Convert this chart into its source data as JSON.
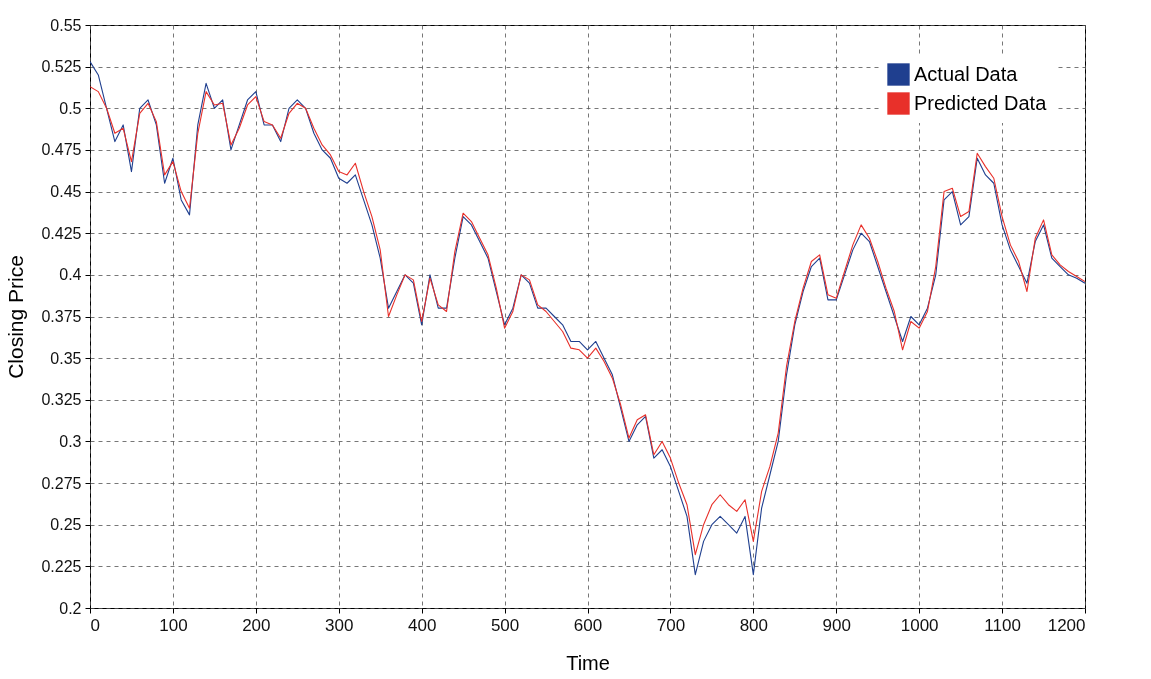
{
  "chart_data": {
    "type": "line",
    "xlabel": "Time",
    "ylabel": "Closing Price",
    "xlim": [
      0,
      1200
    ],
    "xticks": [
      0,
      100,
      200,
      300,
      400,
      500,
      600,
      700,
      800,
      900,
      1000,
      1100,
      1200
    ],
    "ylim": [
      0.2,
      0.55
    ],
    "yticks": [
      0.2,
      0.225,
      0.25,
      0.275,
      0.3,
      0.325,
      0.35,
      0.375,
      0.4,
      0.425,
      0.45,
      0.475,
      0.5,
      0.525,
      0.55
    ],
    "grid": true,
    "legend": "top right",
    "line_style": "solid",
    "x": [
      0,
      10,
      20,
      30,
      40,
      50,
      60,
      70,
      80,
      90,
      100,
      110,
      120,
      130,
      140,
      150,
      160,
      170,
      180,
      190,
      200,
      210,
      220,
      230,
      240,
      250,
      260,
      270,
      280,
      290,
      300,
      310,
      320,
      330,
      340,
      350,
      360,
      370,
      380,
      390,
      400,
      410,
      420,
      430,
      440,
      450,
      460,
      470,
      480,
      490,
      500,
      510,
      520,
      530,
      540,
      550,
      560,
      570,
      580,
      590,
      600,
      610,
      620,
      630,
      640,
      650,
      660,
      670,
      680,
      690,
      700,
      710,
      720,
      730,
      740,
      750,
      760,
      770,
      780,
      790,
      800,
      810,
      820,
      830,
      840,
      850,
      860,
      870,
      880,
      890,
      900,
      910,
      920,
      930,
      940,
      950,
      960,
      970,
      980,
      990,
      1000,
      1010,
      1020,
      1030,
      1040,
      1050,
      1060,
      1070,
      1080,
      1090,
      1100,
      1110,
      1120,
      1130,
      1140,
      1150,
      1160,
      1170,
      1180,
      1190,
      1200
    ],
    "series": [
      {
        "name": "Actual Data",
        "color": "#1f3f8f",
        "values": [
          0.528,
          0.52,
          0.5,
          0.48,
          0.49,
          0.462,
          0.5,
          0.505,
          0.49,
          0.455,
          0.47,
          0.445,
          0.436,
          0.49,
          0.515,
          0.5,
          0.505,
          0.475,
          0.49,
          0.505,
          0.51,
          0.49,
          0.49,
          0.48,
          0.5,
          0.505,
          0.5,
          0.485,
          0.475,
          0.47,
          0.458,
          0.455,
          0.46,
          0.445,
          0.43,
          0.41,
          0.38,
          0.39,
          0.4,
          0.395,
          0.37,
          0.4,
          0.38,
          0.38,
          0.41,
          0.435,
          0.43,
          0.42,
          0.41,
          0.39,
          0.37,
          0.38,
          0.4,
          0.395,
          0.38,
          0.38,
          0.375,
          0.37,
          0.36,
          0.36,
          0.355,
          0.36,
          0.35,
          0.34,
          0.32,
          0.3,
          0.31,
          0.315,
          0.29,
          0.295,
          0.285,
          0.27,
          0.255,
          0.22,
          0.24,
          0.25,
          0.255,
          0.25,
          0.245,
          0.255,
          0.22,
          0.26,
          0.28,
          0.3,
          0.34,
          0.37,
          0.39,
          0.405,
          0.41,
          0.385,
          0.385,
          0.4,
          0.415,
          0.425,
          0.42,
          0.405,
          0.39,
          0.375,
          0.36,
          0.375,
          0.37,
          0.38,
          0.4,
          0.445,
          0.45,
          0.43,
          0.435,
          0.47,
          0.46,
          0.455,
          0.43,
          0.415,
          0.405,
          0.395,
          0.42,
          0.43,
          0.41,
          0.405,
          0.4,
          0.398,
          0.395
        ]
      },
      {
        "name": "Predicted Data",
        "color": "#e8302a",
        "values": [
          0.513,
          0.51,
          0.5,
          0.485,
          0.488,
          0.468,
          0.497,
          0.503,
          0.492,
          0.46,
          0.468,
          0.45,
          0.44,
          0.485,
          0.51,
          0.502,
          0.503,
          0.478,
          0.488,
          0.502,
          0.507,
          0.492,
          0.49,
          0.482,
          0.497,
          0.503,
          0.5,
          0.488,
          0.478,
          0.472,
          0.462,
          0.46,
          0.467,
          0.45,
          0.435,
          0.415,
          0.375,
          0.388,
          0.4,
          0.397,
          0.372,
          0.398,
          0.382,
          0.378,
          0.414,
          0.437,
          0.432,
          0.422,
          0.412,
          0.392,
          0.368,
          0.378,
          0.4,
          0.397,
          0.382,
          0.378,
          0.372,
          0.366,
          0.356,
          0.355,
          0.35,
          0.356,
          0.348,
          0.338,
          0.322,
          0.302,
          0.313,
          0.316,
          0.292,
          0.3,
          0.29,
          0.275,
          0.262,
          0.232,
          0.25,
          0.262,
          0.268,
          0.262,
          0.258,
          0.265,
          0.24,
          0.27,
          0.285,
          0.305,
          0.345,
          0.372,
          0.392,
          0.408,
          0.412,
          0.388,
          0.386,
          0.402,
          0.418,
          0.43,
          0.422,
          0.408,
          0.392,
          0.378,
          0.355,
          0.372,
          0.368,
          0.378,
          0.405,
          0.45,
          0.452,
          0.435,
          0.438,
          0.473,
          0.465,
          0.458,
          0.435,
          0.418,
          0.408,
          0.39,
          0.422,
          0.433,
          0.412,
          0.406,
          0.402,
          0.399,
          0.396
        ]
      }
    ]
  }
}
